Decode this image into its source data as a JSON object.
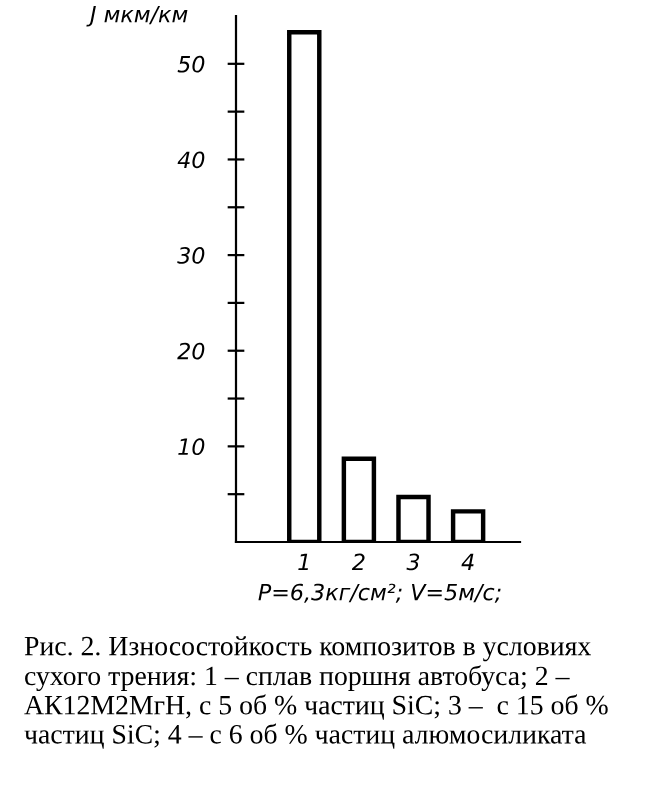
{
  "chart_data": {
    "type": "bar",
    "ylabel": "J мкм/км",
    "xlabel": "P=6,3кг/см²; V=5м/с;",
    "categories": [
      "1",
      "2",
      "3",
      "4"
    ],
    "values": [
      53.3,
      8.7,
      4.7,
      3.2
    ],
    "color": "#ffffff",
    "ylim": [
      0,
      55
    ],
    "yticks": [
      {
        "value": 5,
        "label": null
      },
      10,
      {
        "value": 15,
        "label": null
      },
      20,
      {
        "value": 25,
        "label": null
      },
      30,
      {
        "value": 35,
        "label": null
      },
      40,
      {
        "value": 45,
        "label": null
      },
      50
    ],
    "grid": false,
    "legend": false,
    "annotations": [
      "Рис. 2. Износостойкость композитов в условиях сухого трения: 1 – сплав поршня автобуса; 2 – АК12М2МгН, с 5 об % частиц SiC; 3 –  с 15 об % частиц SiC; 4 – с 6 об % частиц алюмосиликата"
    ]
  }
}
